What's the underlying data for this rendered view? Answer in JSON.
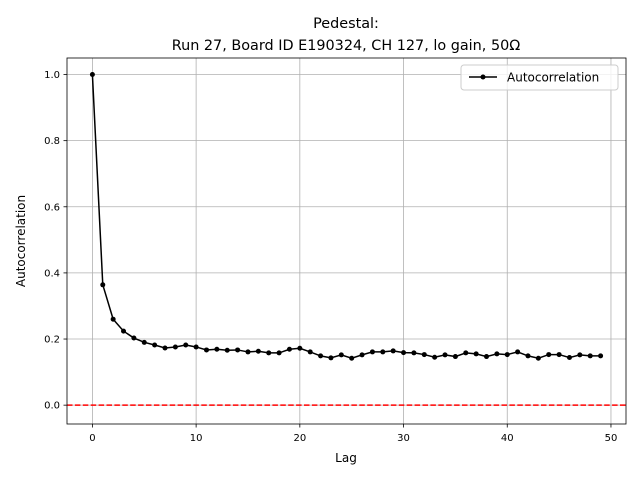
{
  "chart_data": {
    "type": "line",
    "title": "Pedestal:",
    "subtitle": "Run 27, Board ID E190324, CH 127, lo gain, 50Ω",
    "xlabel": "Lag",
    "ylabel": "Autocorrelation",
    "xlim": [
      -2.45,
      51.45
    ],
    "ylim": [
      -0.057,
      1.05
    ],
    "xticks": [
      0,
      10,
      20,
      30,
      40,
      50
    ],
    "yticks": [
      0.0,
      0.2,
      0.4,
      0.6,
      0.8,
      1.0
    ],
    "ytick_labels": [
      "0.0",
      "0.2",
      "0.4",
      "0.6",
      "0.8",
      "1.0"
    ],
    "grid": true,
    "legend_placement": "top-right",
    "series": [
      {
        "name": "Autocorrelation",
        "color": "#000000",
        "marker": "circle",
        "x": [
          0,
          1,
          2,
          3,
          4,
          5,
          6,
          7,
          8,
          9,
          10,
          11,
          12,
          13,
          14,
          15,
          16,
          17,
          18,
          19,
          20,
          21,
          22,
          23,
          24,
          25,
          26,
          27,
          28,
          29,
          30,
          31,
          32,
          33,
          34,
          35,
          36,
          37,
          38,
          39,
          40,
          41,
          42,
          43,
          44,
          45,
          46,
          47,
          48,
          49
        ],
        "values": [
          1.0,
          0.364,
          0.26,
          0.224,
          0.203,
          0.19,
          0.182,
          0.173,
          0.176,
          0.182,
          0.176,
          0.167,
          0.169,
          0.166,
          0.167,
          0.161,
          0.163,
          0.158,
          0.158,
          0.169,
          0.172,
          0.161,
          0.149,
          0.143,
          0.152,
          0.142,
          0.152,
          0.161,
          0.161,
          0.164,
          0.159,
          0.158,
          0.153,
          0.145,
          0.152,
          0.147,
          0.158,
          0.155,
          0.147,
          0.155,
          0.153,
          0.161,
          0.149,
          0.142,
          0.153,
          0.153,
          0.144,
          0.152,
          0.149,
          0.149
        ]
      }
    ],
    "reference_line": {
      "y": 0.0,
      "color": "#ff0000",
      "style": "dashed"
    }
  }
}
